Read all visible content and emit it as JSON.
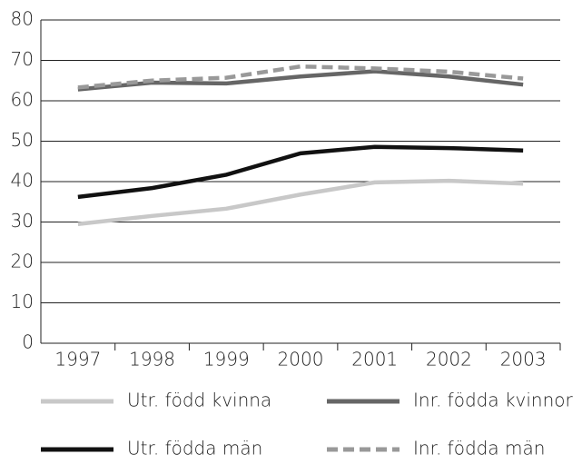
{
  "chart_data": {
    "type": "line",
    "categories": [
      "1997",
      "1998",
      "1999",
      "2000",
      "2001",
      "2002",
      "2003"
    ],
    "series": [
      {
        "name": "Utr. född kvinna",
        "color": "#c8c8c8",
        "values": [
          29.5,
          31.5,
          33.3,
          36.8,
          39.8,
          40.2,
          39.5
        ]
      },
      {
        "name": "Inr. födda kvinnor",
        "color": "#666666",
        "values": [
          62.8,
          64.5,
          64.3,
          66,
          67.3,
          66,
          64
        ]
      },
      {
        "name": "Utr. födda män",
        "color": "#111111",
        "values": [
          36.2,
          38.4,
          41.7,
          47,
          48.6,
          48.3,
          47.7
        ]
      },
      {
        "name": "Inr. födda män",
        "color": "#999999",
        "dashed": true,
        "values": [
          63.3,
          65,
          65.7,
          68.5,
          68,
          67.2,
          65.5
        ]
      }
    ],
    "ylim": [
      0,
      80
    ],
    "yticks": [
      0,
      10,
      20,
      30,
      40,
      50,
      60,
      70,
      80
    ],
    "grid": true
  }
}
